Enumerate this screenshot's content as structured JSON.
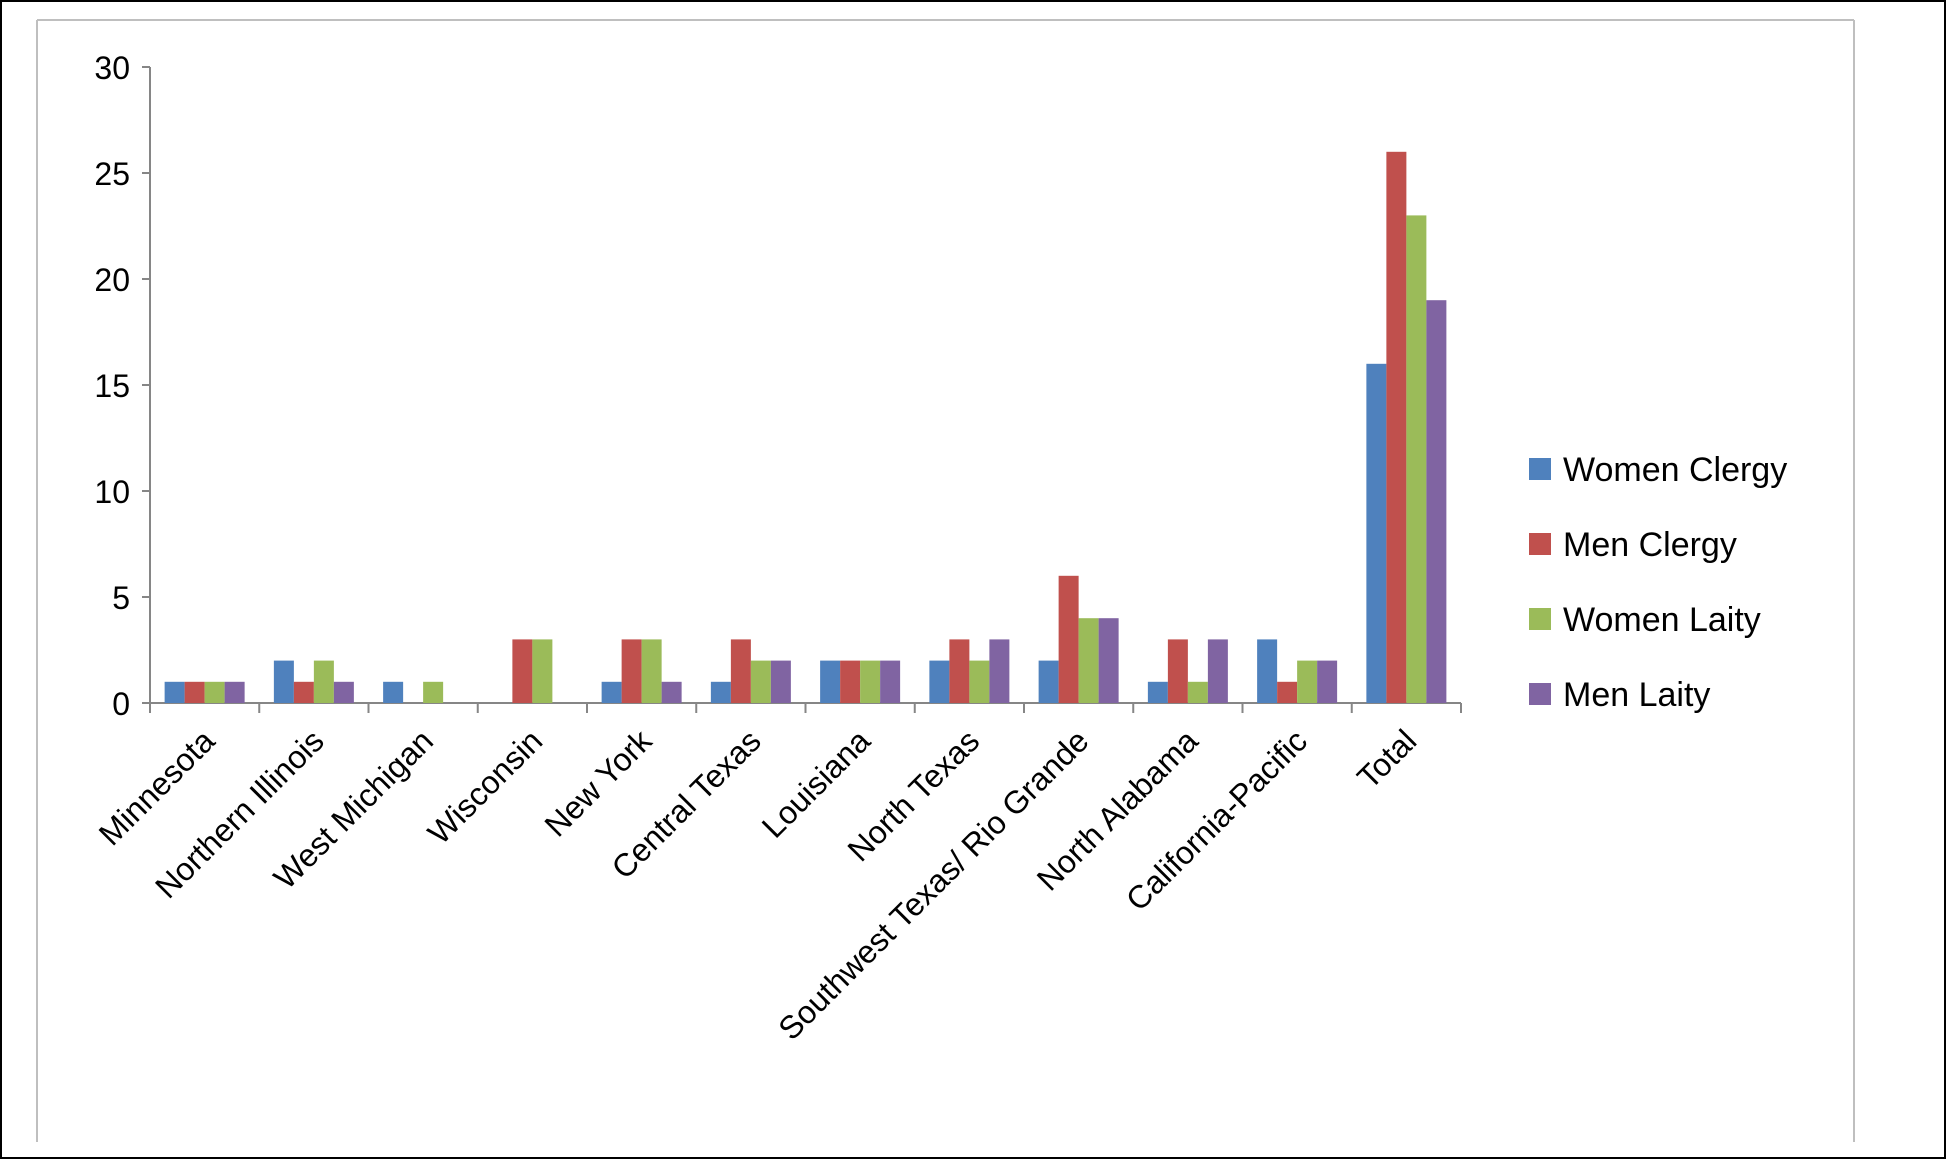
{
  "chart_data": {
    "type": "bar",
    "title": "",
    "xlabel": "",
    "ylabel": "",
    "ylim": [
      0,
      30
    ],
    "yticks": [
      0,
      5,
      10,
      15,
      20,
      25,
      30
    ],
    "grid": false,
    "legend_position": "right",
    "categories": [
      "Minnesota",
      "Northern Illinois",
      "West Michigan",
      "Wisconsin",
      "New York",
      "Central Texas",
      "Louisiana",
      "North Texas",
      "Southwest Texas/ Rio Grande",
      "North Alabama",
      "California-Pacific",
      "Total"
    ],
    "series": [
      {
        "name": "Women Clergy",
        "color": "#4F81BD",
        "values": [
          1,
          2,
          1,
          0,
          1,
          1,
          2,
          2,
          2,
          1,
          3,
          16
        ]
      },
      {
        "name": "Men Clergy",
        "color": "#C0504D",
        "values": [
          1,
          1,
          0,
          3,
          3,
          3,
          2,
          3,
          6,
          3,
          1,
          26
        ]
      },
      {
        "name": "Women Laity",
        "color": "#9BBB59",
        "values": [
          1,
          2,
          1,
          3,
          3,
          2,
          2,
          2,
          4,
          1,
          2,
          23
        ]
      },
      {
        "name": "Men Laity",
        "color": "#8064A2",
        "values": [
          1,
          1,
          0,
          0,
          1,
          2,
          2,
          3,
          4,
          3,
          2,
          19
        ]
      }
    ]
  }
}
